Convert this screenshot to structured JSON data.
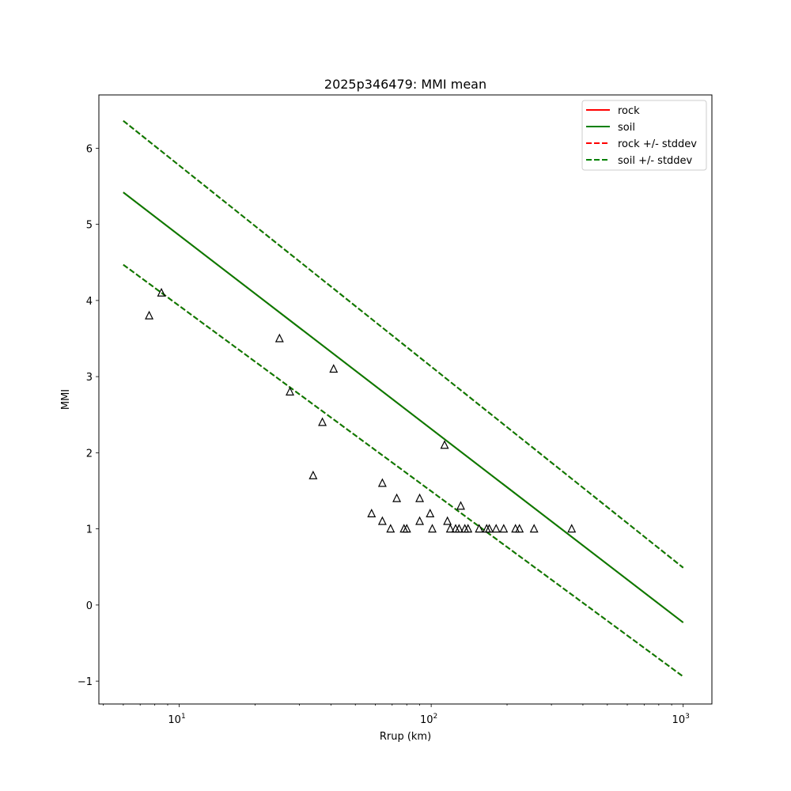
{
  "chart_data": {
    "type": "scatter",
    "title": "2025p346479: MMI mean",
    "xlabel": "Rrup (km)",
    "ylabel": "MMI",
    "xscale": "log",
    "xlim": [
      4.8,
      1300
    ],
    "ylim": [
      -1.3,
      6.7
    ],
    "grid": false,
    "legend_position": "top-right",
    "x_ticks": [
      {
        "value": 10,
        "base": "10",
        "exp": "1"
      },
      {
        "value": 100,
        "base": "10",
        "exp": "2"
      },
      {
        "value": 1000,
        "base": "10",
        "exp": "3"
      }
    ],
    "y_ticks": [
      {
        "value": -1,
        "label": "−1"
      },
      {
        "value": 0,
        "label": "0"
      },
      {
        "value": 1,
        "label": "1"
      },
      {
        "value": 2,
        "label": "2"
      },
      {
        "value": 3,
        "label": "3"
      },
      {
        "value": 4,
        "label": "4"
      },
      {
        "value": 5,
        "label": "5"
      },
      {
        "value": 6,
        "label": "6"
      }
    ],
    "lines": [
      {
        "name": "rock",
        "color": "#ff0000",
        "dash": "solid",
        "x": [
          6,
          1000
        ],
        "y": [
          5.42,
          -0.23
        ]
      },
      {
        "name": "soil",
        "color": "#008000",
        "dash": "solid",
        "x": [
          6,
          1000
        ],
        "y": [
          5.42,
          -0.23
        ]
      },
      {
        "name": "rock +/- stddev",
        "color": "#ff0000",
        "dash": "dashed",
        "x": [
          6,
          1000
        ],
        "y": [
          6.36,
          0.49
        ],
        "x2": [
          6,
          1000
        ],
        "y2": [
          4.47,
          -0.94
        ]
      },
      {
        "name": "soil +/- stddev",
        "color": "#008000",
        "dash": "dashed",
        "x": [
          6,
          1000
        ],
        "y": [
          6.36,
          0.49
        ],
        "x2": [
          6,
          1000
        ],
        "y2": [
          4.47,
          -0.94
        ]
      }
    ],
    "observations": {
      "marker": "triangle",
      "color": "#000000",
      "points": [
        [
          7.6,
          3.8
        ],
        [
          8.5,
          4.1
        ],
        [
          25,
          3.5
        ],
        [
          27.5,
          2.8
        ],
        [
          34,
          1.7
        ],
        [
          37,
          2.4
        ],
        [
          41,
          3.1
        ],
        [
          58,
          1.2
        ],
        [
          64,
          1.6
        ],
        [
          64,
          1.1
        ],
        [
          69,
          1.0
        ],
        [
          73,
          1.4
        ],
        [
          78,
          1.0
        ],
        [
          80,
          1.0
        ],
        [
          90,
          1.1
        ],
        [
          90,
          1.4
        ],
        [
          99,
          1.2
        ],
        [
          101,
          1.0
        ],
        [
          113,
          2.1
        ],
        [
          116,
          1.1
        ],
        [
          119,
          1.0
        ],
        [
          125,
          1.0
        ],
        [
          129,
          1.0
        ],
        [
          131,
          1.3
        ],
        [
          136,
          1.0
        ],
        [
          140,
          1.0
        ],
        [
          155,
          1.0
        ],
        [
          166,
          1.0
        ],
        [
          170,
          1.0
        ],
        [
          181,
          1.0
        ],
        [
          194,
          1.0
        ],
        [
          216,
          1.0
        ],
        [
          224,
          1.0
        ],
        [
          256,
          1.0
        ],
        [
          361,
          1.0
        ]
      ]
    }
  }
}
